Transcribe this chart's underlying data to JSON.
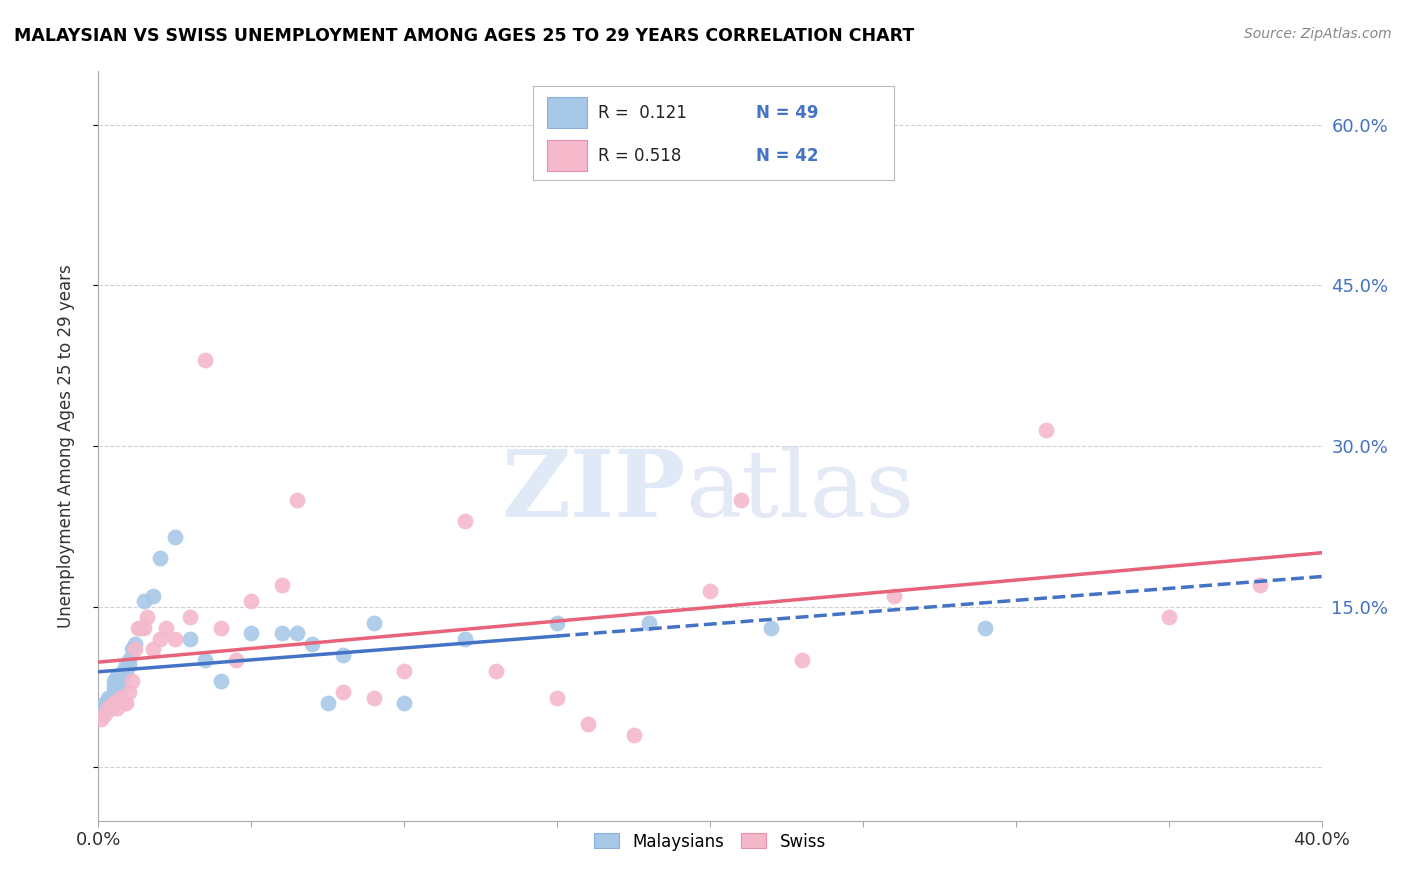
{
  "title": "MALAYSIAN VS SWISS UNEMPLOYMENT AMONG AGES 25 TO 29 YEARS CORRELATION CHART",
  "source": "Source: ZipAtlas.com",
  "ylabel": "Unemployment Among Ages 25 to 29 years",
  "xlim": [
    0.0,
    0.4
  ],
  "ylim": [
    -0.05,
    0.65
  ],
  "malaysian_color": "#a8c8e8",
  "swiss_color": "#f5b8cb",
  "malaysian_line_color": "#4472c4",
  "swiss_line_color": "#e8637a",
  "background_color": "#ffffff",
  "grid_color": "#cccccc",
  "malaysian_x": [
    0.001,
    0.001,
    0.002,
    0.002,
    0.003,
    0.003,
    0.003,
    0.004,
    0.004,
    0.004,
    0.005,
    0.005,
    0.005,
    0.005,
    0.006,
    0.006,
    0.006,
    0.007,
    0.007,
    0.007,
    0.008,
    0.008,
    0.009,
    0.009,
    0.01,
    0.01,
    0.011,
    0.012,
    0.014,
    0.015,
    0.018,
    0.02,
    0.025,
    0.03,
    0.035,
    0.04,
    0.05,
    0.06,
    0.065,
    0.07,
    0.075,
    0.08,
    0.09,
    0.1,
    0.12,
    0.15,
    0.18,
    0.22,
    0.29
  ],
  "malaysian_y": [
    0.05,
    0.055,
    0.06,
    0.055,
    0.06,
    0.065,
    0.06,
    0.065,
    0.06,
    0.055,
    0.07,
    0.075,
    0.08,
    0.065,
    0.08,
    0.085,
    0.075,
    0.085,
    0.08,
    0.075,
    0.09,
    0.085,
    0.095,
    0.09,
    0.1,
    0.095,
    0.11,
    0.115,
    0.13,
    0.155,
    0.16,
    0.195,
    0.215,
    0.12,
    0.1,
    0.08,
    0.125,
    0.125,
    0.125,
    0.115,
    0.06,
    0.105,
    0.135,
    0.06,
    0.12,
    0.135,
    0.135,
    0.13,
    0.13
  ],
  "swiss_x": [
    0.001,
    0.002,
    0.003,
    0.004,
    0.005,
    0.005,
    0.006,
    0.007,
    0.008,
    0.009,
    0.01,
    0.011,
    0.012,
    0.013,
    0.015,
    0.016,
    0.018,
    0.02,
    0.022,
    0.025,
    0.03,
    0.035,
    0.04,
    0.045,
    0.05,
    0.06,
    0.065,
    0.08,
    0.09,
    0.1,
    0.12,
    0.13,
    0.15,
    0.16,
    0.175,
    0.2,
    0.21,
    0.23,
    0.26,
    0.31,
    0.35,
    0.38
  ],
  "swiss_y": [
    0.045,
    0.05,
    0.055,
    0.055,
    0.06,
    0.06,
    0.055,
    0.065,
    0.06,
    0.06,
    0.07,
    0.08,
    0.11,
    0.13,
    0.13,
    0.14,
    0.11,
    0.12,
    0.13,
    0.12,
    0.14,
    0.38,
    0.13,
    0.1,
    0.155,
    0.17,
    0.25,
    0.07,
    0.065,
    0.09,
    0.23,
    0.09,
    0.065,
    0.04,
    0.03,
    0.165,
    0.25,
    0.1,
    0.16,
    0.315,
    0.14,
    0.17
  ]
}
